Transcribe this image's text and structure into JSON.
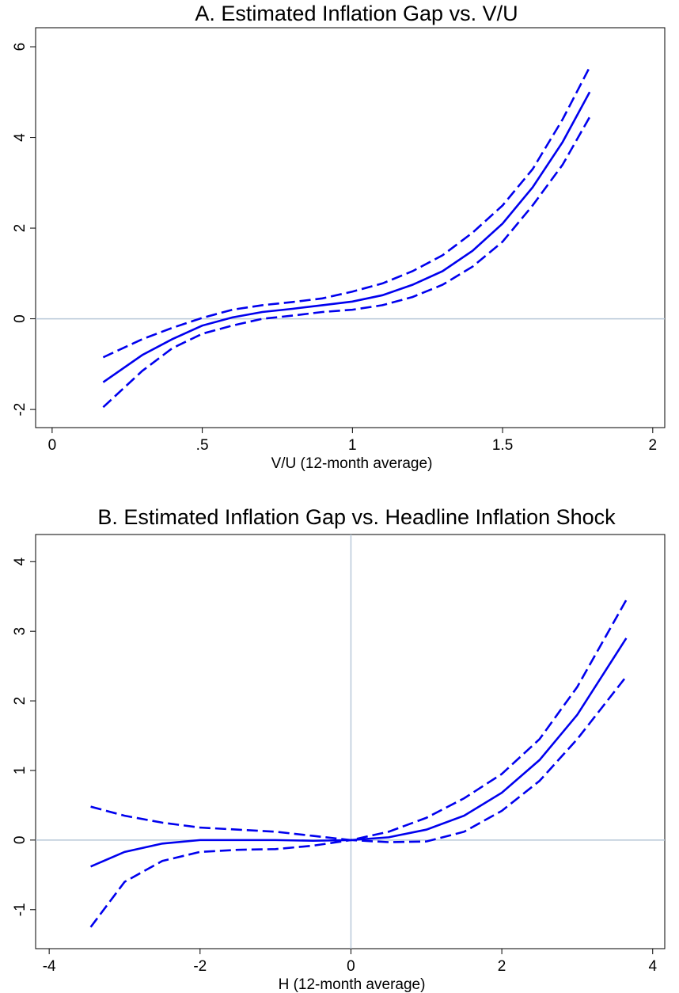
{
  "chart_data": [
    {
      "type": "line",
      "title": "A. Estimated Inflation Gap vs. V/U",
      "x_label": "V/U (12-month average)",
      "x": [
        0.17,
        0.3,
        0.4,
        0.5,
        0.6,
        0.7,
        0.8,
        0.9,
        1.0,
        1.1,
        1.2,
        1.3,
        1.4,
        1.5,
        1.6,
        1.7,
        1.79
      ],
      "series": [
        {
          "color": "#0000ee",
          "dashed": false,
          "values": [
            -1.4,
            -0.8,
            -0.45,
            -0.15,
            0.03,
            0.15,
            0.22,
            0.3,
            0.38,
            0.52,
            0.75,
            1.05,
            1.5,
            2.1,
            2.9,
            3.9,
            5.0
          ]
        },
        {
          "color": "#0000ee",
          "dashed": true,
          "values": [
            -0.85,
            -0.45,
            -0.2,
            0.02,
            0.2,
            0.3,
            0.37,
            0.45,
            0.6,
            0.78,
            1.05,
            1.4,
            1.9,
            2.5,
            3.3,
            4.4,
            5.55
          ]
        },
        {
          "color": "#0000ee",
          "dashed": true,
          "values": [
            -1.95,
            -1.15,
            -0.65,
            -0.33,
            -0.15,
            0.0,
            0.07,
            0.15,
            0.2,
            0.3,
            0.48,
            0.75,
            1.15,
            1.7,
            2.5,
            3.4,
            4.45
          ]
        }
      ],
      "xlim": [
        -0.055,
        2.04
      ],
      "ylim": [
        -2.4,
        6.42
      ],
      "xticks": [
        0,
        {
          "value": 0.5,
          "label": ".5"
        },
        1,
        {
          "value": 1.5,
          "label": "1.5"
        },
        2
      ],
      "yticks": [
        -2,
        0,
        2,
        4,
        6
      ],
      "zero_lines": [
        "y"
      ],
      "zero_line_color": "#b8c8d8"
    },
    {
      "type": "line",
      "title": "B. Estimated Inflation Gap vs. Headline Inflation Shock",
      "x_label": "H (12-month average)",
      "x": [
        -3.45,
        -3,
        -2.5,
        -2,
        -1.5,
        -1,
        -0.5,
        0,
        0.5,
        1,
        1.5,
        2,
        2.5,
        3,
        3.65
      ],
      "series": [
        {
          "color": "#0000ee",
          "dashed": false,
          "values": [
            -0.38,
            -0.17,
            -0.05,
            0.0,
            0.0,
            0.0,
            -0.01,
            0,
            0.04,
            0.15,
            0.35,
            0.68,
            1.15,
            1.8,
            2.9
          ]
        },
        {
          "color": "#0000ee",
          "dashed": true,
          "values": [
            0.48,
            0.35,
            0.25,
            0.18,
            0.15,
            0.12,
            0.06,
            0,
            0.12,
            0.32,
            0.6,
            0.95,
            1.45,
            2.2,
            3.45
          ]
        },
        {
          "color": "#0000ee",
          "dashed": true,
          "values": [
            -1.25,
            -0.6,
            -0.3,
            -0.17,
            -0.14,
            -0.13,
            -0.08,
            0,
            -0.03,
            -0.02,
            0.12,
            0.42,
            0.85,
            1.45,
            2.35
          ]
        }
      ],
      "xlim": [
        -4.18,
        4.16
      ],
      "ylim": [
        -1.56,
        4.39
      ],
      "xticks": [
        -4,
        -2,
        0,
        2,
        4
      ],
      "yticks": [
        -1,
        0,
        1,
        2,
        3,
        4
      ],
      "zero_lines": [
        "x",
        "y"
      ],
      "zero_line_color": "#b8c8d8"
    }
  ]
}
